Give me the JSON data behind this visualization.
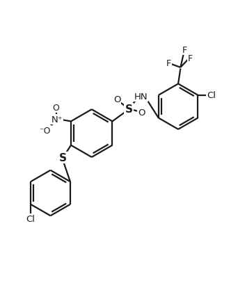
{
  "bg_color": "#ffffff",
  "line_color": "#1a1a1a",
  "line_width": 1.6,
  "fig_width": 3.42,
  "fig_height": 4.31,
  "dpi": 100,
  "xlim": [
    0,
    10
  ],
  "ylim": [
    0,
    13
  ]
}
